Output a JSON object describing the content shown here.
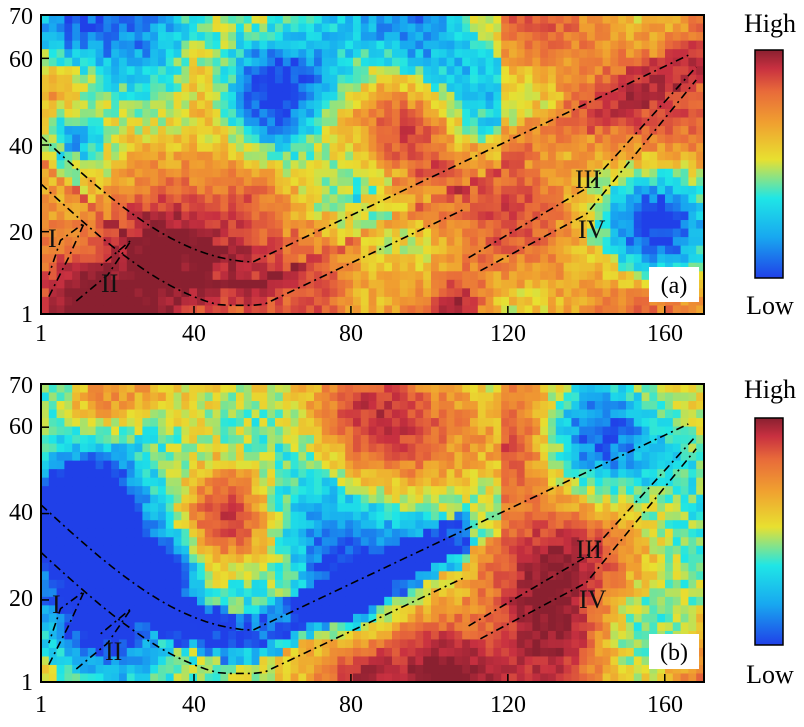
{
  "colors": {
    "colormap": [
      "#2040e8",
      "#18a8f0",
      "#1fe6e6",
      "#e8e030",
      "#f0a030",
      "#e86a3a",
      "#c83040",
      "#8a2030"
    ],
    "frame": "#000000",
    "region_boundary": "#000000"
  },
  "chart_data": [
    {
      "type": "heatmap",
      "panel_label": "(a)",
      "xlim": [
        1,
        170
      ],
      "ylim": [
        1,
        70
      ],
      "x_ticks": [
        "1",
        "40",
        "80",
        "120",
        "160"
      ],
      "y_ticks": [
        "1",
        "20",
        "40",
        "60",
        "70"
      ],
      "colorbar": {
        "high_label": "High",
        "low_label": "Low"
      },
      "regions": [
        {
          "label": "I",
          "x": 6,
          "y": 20
        },
        {
          "label": "II",
          "x": 20,
          "y": 9
        },
        {
          "label": "III",
          "x": 142,
          "y": 36
        },
        {
          "label": "IV",
          "x": 142,
          "y": 23
        }
      ],
      "seed": 17
    },
    {
      "type": "heatmap",
      "panel_label": "(b)",
      "xlim": [
        1,
        170
      ],
      "ylim": [
        1,
        70
      ],
      "x_ticks": [
        "1",
        "40",
        "80",
        "120",
        "160"
      ],
      "y_ticks": [
        "1",
        "20",
        "40",
        "60",
        "70"
      ],
      "colorbar": {
        "high_label": "High",
        "low_label": "Low"
      },
      "regions": [
        {
          "label": "I",
          "x": 6,
          "y": 20
        },
        {
          "label": "II",
          "x": 20,
          "y": 9
        },
        {
          "label": "III",
          "x": 142,
          "y": 36
        },
        {
          "label": "IV",
          "x": 142,
          "y": 23
        }
      ],
      "seed": 53
    }
  ]
}
